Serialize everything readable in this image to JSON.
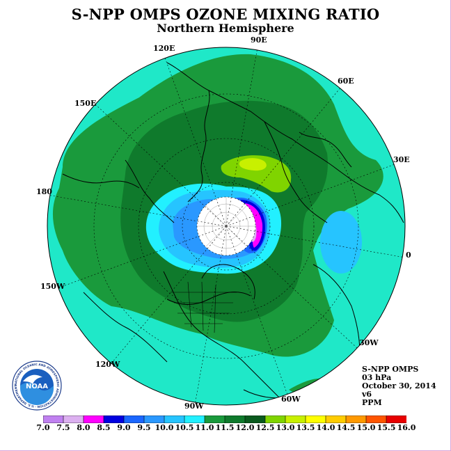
{
  "title": "S-NPP OMPS OZONE MIXING RATIO",
  "subtitle": "Northern Hemisphere",
  "longitude_labels": [
    "90E",
    "60E",
    "30E",
    "0",
    "30W",
    "60W",
    "90W",
    "120W",
    "150W",
    "180",
    "150E",
    "120E"
  ],
  "info": {
    "instrument": "S-NPP OMPS",
    "level": "03 hPa",
    "date": "October 30, 2014",
    "version": "v6",
    "units": "PPM"
  },
  "logo": {
    "text": "NOAA",
    "ring_text": "NATIONAL OCEANIC AND ATMOSPHERIC ADMINISTRATION · U.S. DEPARTMENT OF COMMERCE"
  },
  "colorbar": {
    "labels": [
      "7.0",
      "7.5",
      "8.0",
      "8.5",
      "9.0",
      "9.5",
      "10.0",
      "10.5",
      "11.0",
      "11.5",
      "12.0",
      "12.5",
      "13.0",
      "13.5",
      "14.0",
      "14.5",
      "15.0",
      "15.5",
      "16.0"
    ],
    "colors": [
      "#c080f0",
      "#dcb0f0",
      "#ff00ff",
      "#0000e0",
      "#1a66ff",
      "#2a98ff",
      "#26c4ff",
      "#22f0ff",
      "#1fe8c8",
      "#1a9a3c",
      "#0f7a2c",
      "#0a5a1e",
      "#80d400",
      "#c8f000",
      "#ffff00",
      "#ffcc00",
      "#ff9900",
      "#ff5500",
      "#e80000",
      "#8b5a3c"
    ]
  },
  "colors": {
    "ring_outer": "#1fe8c8",
    "band_mid": "#1a9a3c",
    "band_dark": "#0f7a2c",
    "polar_white": "#ffffff",
    "blue_light": "#26c4ff",
    "blue": "#2a98ff",
    "magenta": "#ff00ff",
    "yellow_green": "#c8f000"
  }
}
